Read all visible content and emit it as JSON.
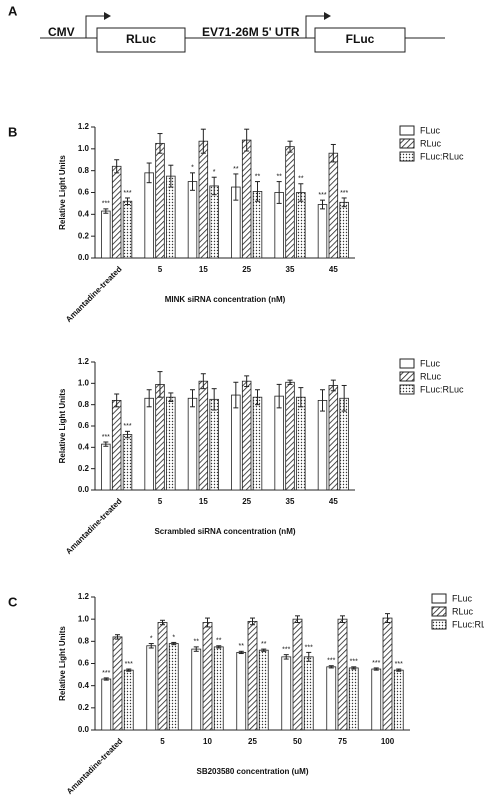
{
  "diagram": {
    "panel": "A",
    "promoter": "CMV",
    "gene1": "RLuc",
    "utr": "EV71-26M 5' UTR",
    "gene2": "FLuc"
  },
  "chart_data": [
    {
      "type": "bar",
      "panel": "B",
      "y_label": "Relative Light Units",
      "x_label": "MINK siRNA concentration (nM)",
      "categories": [
        "Amantadine-treated",
        "5",
        "15",
        "25",
        "35",
        "45"
      ],
      "ylim": [
        0,
        1.2
      ],
      "yticks": [
        {
          "value": 0,
          "label": "0.0"
        },
        0.2,
        0.4,
        0.6,
        0.8,
        {
          "value": 1,
          "label": "1.0"
        },
        1.2
      ],
      "legend": "right",
      "series": [
        {
          "name": "FLuc",
          "color": "#222222",
          "pattern": "none",
          "values": [
            0.43,
            0.78,
            0.7,
            0.65,
            0.6,
            0.49
          ],
          "errors": [
            0.02,
            0.09,
            0.08,
            0.12,
            0.1,
            0.04
          ],
          "stars": [
            "***",
            null,
            "*",
            "**",
            "**",
            "***"
          ]
        },
        {
          "name": "RLuc",
          "color": "#222222",
          "pattern": "hatch",
          "values": [
            0.84,
            1.05,
            1.07,
            1.08,
            1.02,
            0.96
          ],
          "errors": [
            0.06,
            0.09,
            0.11,
            0.1,
            0.05,
            0.08
          ]
        },
        {
          "name": "FLuc:RLuc",
          "color": "#222222",
          "pattern": "dots",
          "values": [
            0.52,
            0.75,
            0.66,
            0.61,
            0.6,
            0.51
          ],
          "errors": [
            0.03,
            0.1,
            0.08,
            0.09,
            0.08,
            0.04
          ],
          "stars": [
            "***",
            null,
            "*",
            "**",
            "**",
            "***"
          ]
        }
      ]
    },
    {
      "type": "bar",
      "y_label": "Relative Light Units",
      "x_label": "Scrambled siRNA concentration (nM)",
      "categories": [
        "Amantadine-treated",
        "5",
        "15",
        "25",
        "35",
        "45"
      ],
      "ylim": [
        0,
        1.2
      ],
      "yticks": [
        {
          "value": 0,
          "label": "0.0"
        },
        0.2,
        0.4,
        0.6,
        0.8,
        {
          "value": 1,
          "label": "1.0"
        },
        1.2
      ],
      "legend": "right",
      "series": [
        {
          "name": "FLuc",
          "color": "#222222",
          "pattern": "none",
          "values": [
            0.43,
            0.86,
            0.86,
            0.89,
            0.88,
            0.84
          ],
          "errors": [
            0.02,
            0.08,
            0.08,
            0.12,
            0.11,
            0.1
          ],
          "stars": [
            "***",
            null,
            null,
            null,
            null,
            null
          ]
        },
        {
          "name": "RLuc",
          "color": "#222222",
          "pattern": "hatch",
          "values": [
            0.84,
            0.99,
            1.02,
            1.02,
            1.01,
            0.98
          ],
          "errors": [
            0.06,
            0.12,
            0.07,
            0.05,
            0.02,
            0.05
          ]
        },
        {
          "name": "FLuc:RLuc",
          "color": "#222222",
          "pattern": "dots",
          "values": [
            0.52,
            0.87,
            0.85,
            0.87,
            0.87,
            0.86
          ],
          "errors": [
            0.03,
            0.04,
            0.1,
            0.07,
            0.09,
            0.12
          ],
          "stars": [
            "***",
            null,
            null,
            null,
            null,
            null
          ]
        }
      ]
    },
    {
      "type": "bar",
      "panel": "C",
      "y_label": "Relative Light Units",
      "x_label": "SB203580 concentration (uM)",
      "categories": [
        "Amantadine-treated",
        "5",
        "10",
        "25",
        "50",
        "75",
        "100"
      ],
      "ylim": [
        0,
        1.2
      ],
      "yticks": [
        {
          "value": 0,
          "label": "0.0"
        },
        0.2,
        0.4,
        0.6,
        0.8,
        {
          "value": 1,
          "label": "1.0"
        },
        1.2
      ],
      "legend": "right",
      "series": [
        {
          "name": "FLuc",
          "color": "#222222",
          "pattern": "none",
          "values": [
            0.46,
            0.76,
            0.73,
            0.7,
            0.66,
            0.57,
            0.55
          ],
          "errors": [
            0.01,
            0.02,
            0.02,
            0.01,
            0.02,
            0.01,
            0.01
          ],
          "stars": [
            "***",
            "*",
            "**",
            "**",
            "***",
            "***",
            "***"
          ]
        },
        {
          "name": "RLuc",
          "color": "#222222",
          "pattern": "hatch",
          "values": [
            0.84,
            0.97,
            0.97,
            0.98,
            1.0,
            1.0,
            1.01
          ],
          "errors": [
            0.02,
            0.02,
            0.04,
            0.03,
            0.03,
            0.03,
            0.04
          ]
        },
        {
          "name": "FLuc:RLuc",
          "color": "#222222",
          "pattern": "dots",
          "values": [
            0.54,
            0.78,
            0.75,
            0.72,
            0.66,
            0.56,
            0.54
          ],
          "errors": [
            0.01,
            0.01,
            0.01,
            0.01,
            0.04,
            0.01,
            0.01
          ],
          "stars": [
            "***",
            "*",
            "**",
            "**",
            "***",
            "***",
            "***"
          ]
        }
      ]
    }
  ]
}
